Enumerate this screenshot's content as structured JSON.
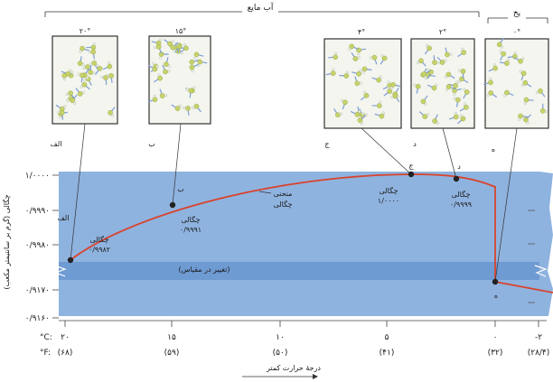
{
  "top_labels": {
    "liquid_water": "آب مایع",
    "ice": "یخ"
  },
  "panels": [
    {
      "id": "alef",
      "temp": "۲۰°",
      "letter": "الف"
    },
    {
      "id": "be",
      "temp": "۱۵°",
      "letter": "ب"
    },
    {
      "id": "jim",
      "temp": "۴°",
      "letter": "ج"
    },
    {
      "id": "dal",
      "temp": "۲°",
      "letter": "د"
    },
    {
      "id": "he",
      "temp": "۰°",
      "letter": "ه"
    }
  ],
  "y_axis": {
    "label": "چگالی (گرم بر سانتیمتر مکعب)",
    "ticks": [
      "۱/۰۰۰۰",
      "۰/۹۹۹۰",
      "۰/۹۹۸۰",
      "۰/۹۱۷۰",
      "۰/۹۱۶۰"
    ]
  },
  "x_axis": {
    "c_label": "°C:",
    "f_label": "°F:",
    "c_ticks": [
      "۲۰",
      "۱۵",
      "۱۰",
      "۵",
      "۰",
      "-۲"
    ],
    "f_ticks": [
      "(۶۸)",
      "(۵۹)",
      "(۵۰)",
      "(۴۱)",
      "(۳۲)",
      "(۲۸/۴)"
    ],
    "title": "درجهٔ حرارت کمتر"
  },
  "scale_change": "(تغییر در مقیاس)",
  "curve_label": [
    "منحنی",
    "چگالی"
  ],
  "points": [
    {
      "letter": "الف",
      "label": "چگالی",
      "value": "۰/۹۹۸۲"
    },
    {
      "letter": "ب",
      "label": "چگالی",
      "value": "۰/۹۹۹۱"
    },
    {
      "letter": "ج",
      "label": "چگالی",
      "value": "۱/۰۰۰۰"
    },
    {
      "letter": "د",
      "label": "چگالی",
      "value": "۰/۹۹۹۹"
    },
    {
      "letter": "ه"
    }
  ],
  "colors": {
    "band_light": "#8fb3df",
    "band_dark": "#6f9bd3",
    "curve": "#d8432c",
    "atom": "#c7d36a",
    "bond": "#7e9ed6",
    "panel_bg": "#f3f5ee"
  }
}
